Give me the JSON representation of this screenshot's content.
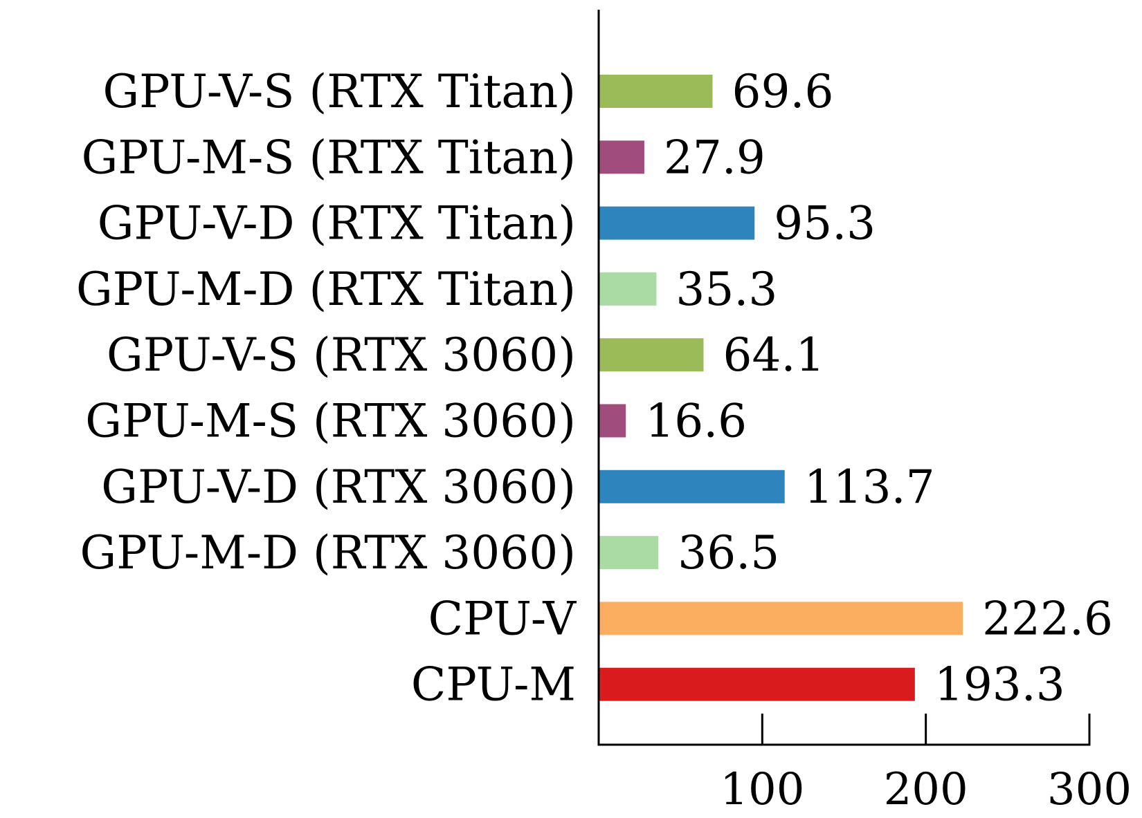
{
  "chart_data": {
    "type": "bar",
    "orientation": "horizontal",
    "title": "",
    "xlabel": "",
    "ylabel": "",
    "xlim": [
      0,
      300
    ],
    "grid": false,
    "categories": [
      "GPU-V-S (RTX Titan)",
      "GPU-M-S (RTX Titan)",
      "GPU-V-D (RTX Titan)",
      "GPU-M-D (RTX Titan)",
      "GPU-V-S (RTX 3060)",
      "GPU-M-S (RTX 3060)",
      "GPU-V-D (RTX 3060)",
      "GPU-M-D (RTX 3060)",
      "CPU-V",
      "CPU-M"
    ],
    "values": [
      69.6,
      27.9,
      95.3,
      35.3,
      64.1,
      16.6,
      113.7,
      36.5,
      222.6,
      193.3
    ],
    "value_labels": [
      "69.6",
      "27.9",
      "95.3",
      "35.3",
      "64.1",
      "16.6",
      "113.7",
      "36.5",
      "222.6",
      "193.3"
    ],
    "colors": [
      "#9bbb59",
      "#a04d7e",
      "#2e84bd",
      "#abdba5",
      "#9bbb59",
      "#a04d7e",
      "#2e84bd",
      "#abdba5",
      "#fbae5f",
      "#d91b1d"
    ],
    "x_ticks": [
      100,
      200,
      300
    ],
    "x_tick_labels": [
      "100",
      "200",
      "300"
    ],
    "axis_color": "#000000"
  }
}
